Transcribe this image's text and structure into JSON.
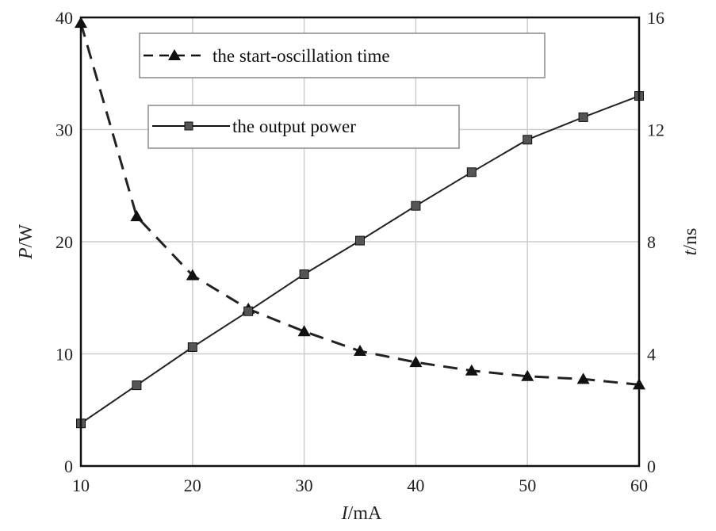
{
  "chart_data": {
    "type": "line",
    "x": [
      10,
      15,
      20,
      25,
      30,
      35,
      40,
      45,
      50,
      55,
      60
    ],
    "xlim": [
      10,
      60
    ],
    "xticks": [
      "10",
      "20",
      "30",
      "40",
      "50",
      "60"
    ],
    "xlabel": {
      "var": "I",
      "unit": "/mA"
    },
    "left_axis": {
      "label": {
        "var": "P",
        "unit": "/W"
      },
      "lim": [
        0,
        40
      ],
      "ticks": [
        "0",
        "10",
        "20",
        "30",
        "40"
      ]
    },
    "right_axis": {
      "label": {
        "var": "t",
        "unit": "/ns"
      },
      "lim": [
        0,
        16
      ],
      "ticks": [
        "0",
        "4",
        "8",
        "12",
        "16"
      ]
    },
    "series": [
      {
        "name": "the start-oscillation time",
        "axis": "right",
        "marker": "triangle",
        "line_style": "dashed",
        "values": [
          15.8,
          8.9,
          6.8,
          5.6,
          4.8,
          4.1,
          3.7,
          3.4,
          3.2,
          3.1,
          2.9
        ]
      },
      {
        "name": "the output power",
        "axis": "left",
        "marker": "square",
        "line_style": "solid",
        "values": [
          3.8,
          7.2,
          10.6,
          13.8,
          17.1,
          20.1,
          23.2,
          26.2,
          29.1,
          31.1,
          33.0
        ]
      }
    ],
    "grid": true,
    "colors": {
      "line": "#222222",
      "grid": "#cccccc",
      "marker": "#555555"
    }
  }
}
